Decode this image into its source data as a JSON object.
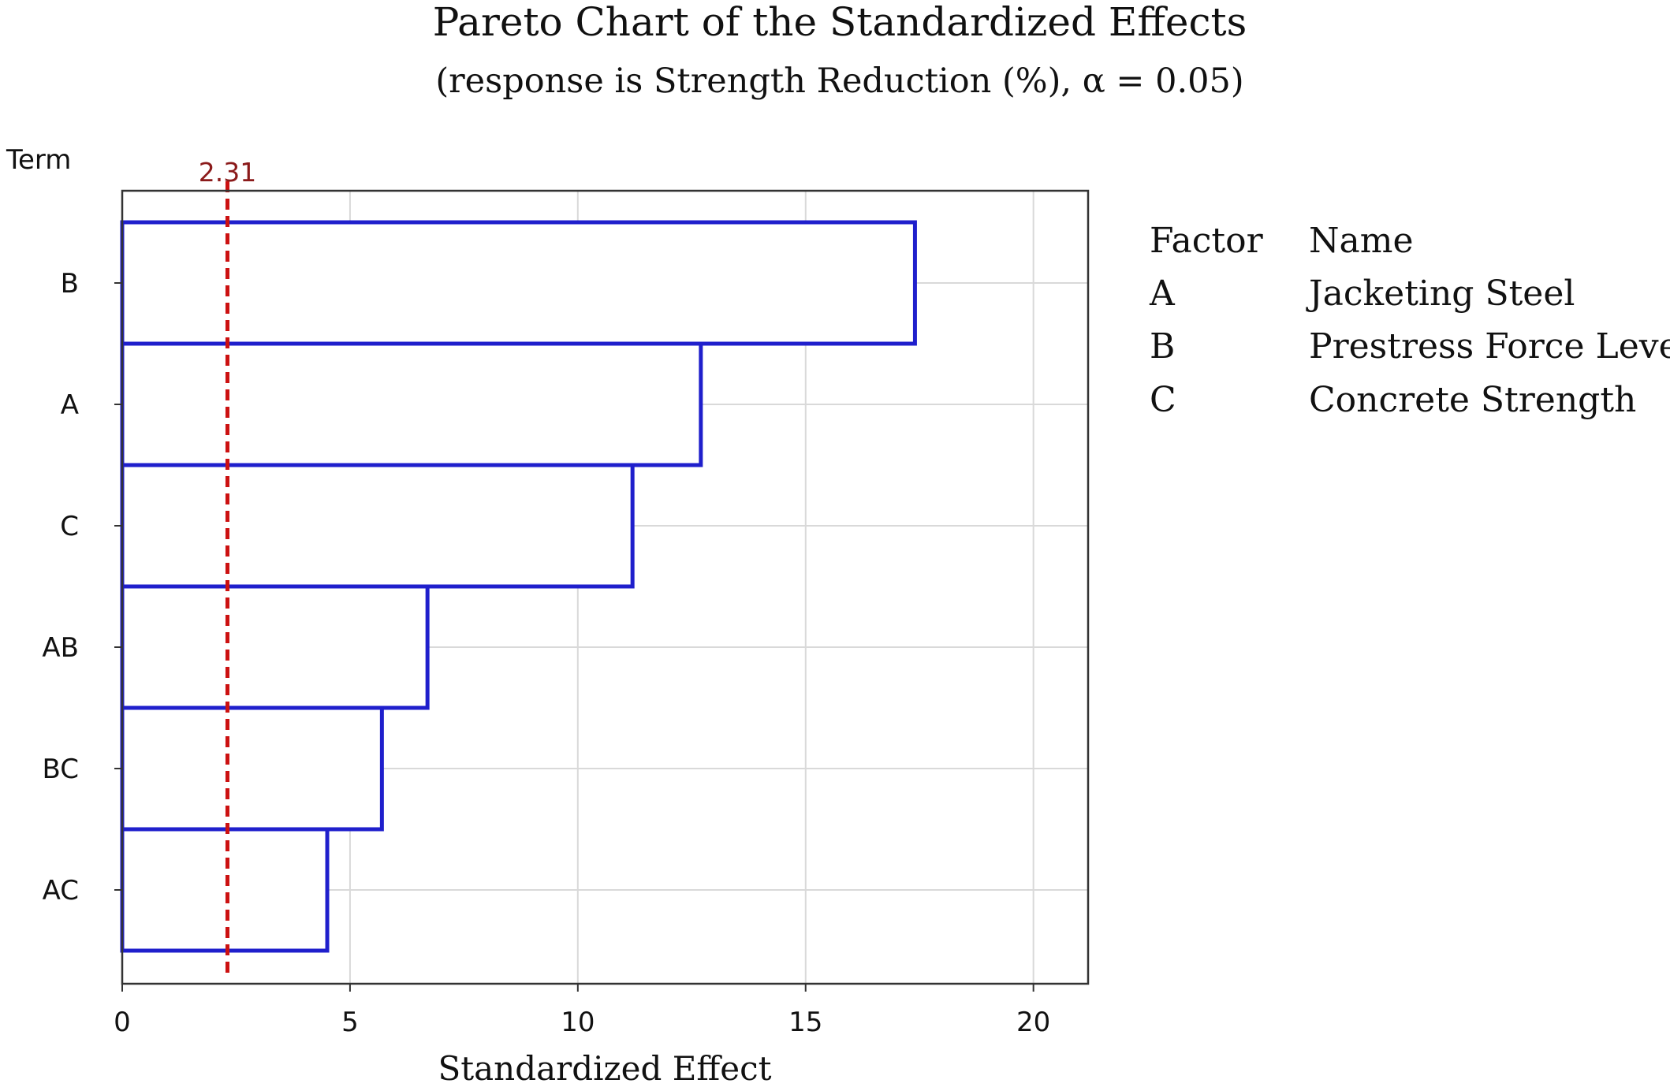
{
  "chart_data": {
    "type": "bar",
    "orientation": "horizontal",
    "title": "Pareto Chart of the Standardized Effects",
    "subtitle": "(response is Strength Reduction (%), α = 0.05)",
    "xlabel": "Standardized Effect",
    "ylabel": "Term",
    "categories": [
      "B",
      "A",
      "C",
      "AB",
      "BC",
      "AC"
    ],
    "values": [
      17.4,
      12.7,
      11.2,
      6.7,
      5.7,
      4.5
    ],
    "xlim": [
      0,
      21.2
    ],
    "xticks": [
      0,
      5,
      10,
      15,
      20
    ],
    "grid": true,
    "reference_line": {
      "value": 2.31,
      "label": "2.31",
      "color": "#cc1111"
    },
    "bar_color": "#1f1fcc",
    "legend": {
      "placement": "right",
      "header": [
        "Factor",
        "Name"
      ],
      "rows": [
        [
          "A",
          "Jacketing Steel"
        ],
        [
          "B",
          "Prestress Force Level"
        ],
        [
          "C",
          "Concrete Strength"
        ]
      ]
    }
  }
}
